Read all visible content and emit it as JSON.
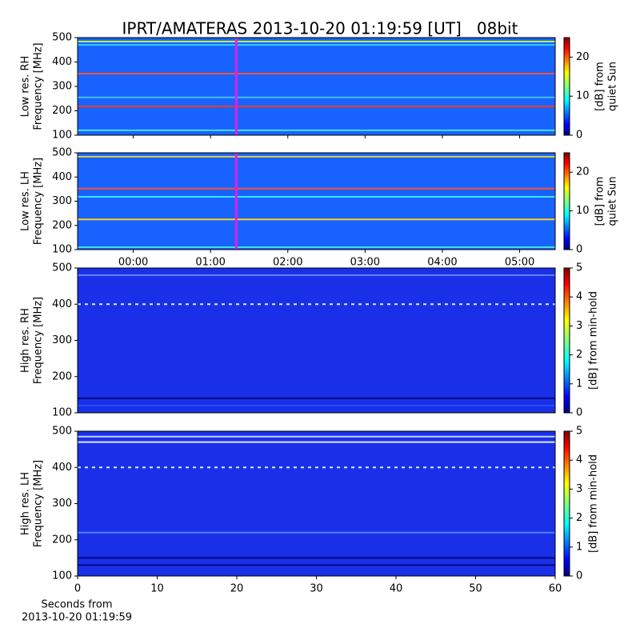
{
  "title": "IPRT/AMATERAS 2013-10-20 01:19:59 [UT]   08bit",
  "chart_data": [
    {
      "type": "heatmap",
      "ylabel": [
        "Low res. RH",
        "Frequency [MHz]"
      ],
      "background": "#1863ff",
      "ylim": [
        100,
        500
      ],
      "yticks": [
        100,
        200,
        300,
        400,
        500
      ],
      "xlim": [
        -0.72,
        5.46
      ],
      "marker_x": 1.333,
      "marker_color": "#e020e0",
      "clim": [
        0,
        25
      ],
      "cticks": [
        0,
        10,
        20
      ],
      "clabel": [
        "[dB] from",
        "quiet Sun"
      ],
      "bands": [
        {
          "freq": 484,
          "color": "#c8f040"
        },
        {
          "freq": 470,
          "color": "#30d0ff"
        },
        {
          "freq": 352,
          "color": "#ff5030"
        },
        {
          "freq": 218,
          "color": "#ff3a20"
        },
        {
          "freq": 255,
          "color": "#40c0ff"
        },
        {
          "freq": 120,
          "color": "#40e0e0"
        }
      ]
    },
    {
      "type": "heatmap",
      "ylabel": [
        "Low res. LH",
        "Frequency [MHz]"
      ],
      "background": "#1863ff",
      "ylim": [
        100,
        500
      ],
      "yticks": [
        100,
        200,
        300,
        400,
        500
      ],
      "xlim": [
        -0.72,
        5.46
      ],
      "marker_x": 1.333,
      "marker_color": "#e020e0",
      "xticks": [
        {
          "value": 0,
          "label": "00:00"
        },
        {
          "value": 1,
          "label": "01:00"
        },
        {
          "value": 2,
          "label": "02:00"
        },
        {
          "value": 3,
          "label": "03:00"
        },
        {
          "value": 4,
          "label": "04:00"
        },
        {
          "value": 5,
          "label": "05:00"
        }
      ],
      "clim": [
        0,
        25
      ],
      "cticks": [
        0,
        10,
        20
      ],
      "clabel": [
        "[dB] from",
        "quiet Sun"
      ],
      "bands": [
        {
          "freq": 484,
          "color": "#e0d040"
        },
        {
          "freq": 352,
          "color": "#ff5030"
        },
        {
          "freq": 318,
          "color": "#40e0ff"
        },
        {
          "freq": 225,
          "color": "#ffd020"
        },
        {
          "freq": 110,
          "color": "#40e0e0"
        }
      ]
    },
    {
      "type": "heatmap",
      "ylabel": [
        "High res. RH",
        "Frequency [MHz]"
      ],
      "background": "#1a30e8",
      "ylim": [
        100,
        500
      ],
      "yticks": [
        100,
        200,
        300,
        400,
        500
      ],
      "xlim": [
        0,
        60
      ],
      "clim": [
        0,
        5
      ],
      "cticks": [
        0,
        1,
        2,
        3,
        4,
        5
      ],
      "clabel": [
        "[dB] from min-hold"
      ],
      "bands": [
        {
          "freq": 480,
          "color": "#6080ff"
        },
        {
          "freq": 400,
          "color": "#e0e8ff"
        },
        {
          "freq": 140,
          "color": "#000a80"
        },
        {
          "freq": 120,
          "color": "#2050ff"
        }
      ]
    },
    {
      "type": "heatmap",
      "ylabel": [
        "High res. LH",
        "Frequency [MHz]"
      ],
      "background": "#1a30e8",
      "ylim": [
        100,
        500
      ],
      "yticks": [
        100,
        200,
        300,
        400,
        500
      ],
      "xlim": [
        0,
        60
      ],
      "xticks": [
        0,
        10,
        20,
        30,
        40,
        50,
        60
      ],
      "xlabel": [
        "Seconds from",
        "2013-10-20 01:19:59"
      ],
      "clim": [
        0,
        5
      ],
      "cticks": [
        0,
        1,
        2,
        3,
        4,
        5
      ],
      "clabel": [
        "[dB] from min-hold"
      ],
      "bands": [
        {
          "freq": 485,
          "color": "#c0d0ff"
        },
        {
          "freq": 470,
          "color": "#e0e8ff"
        },
        {
          "freq": 400,
          "color": "#e0e8ff"
        },
        {
          "freq": 220,
          "color": "#5080ff"
        },
        {
          "freq": 150,
          "color": "#000a80"
        },
        {
          "freq": 130,
          "color": "#000a80"
        }
      ]
    }
  ]
}
